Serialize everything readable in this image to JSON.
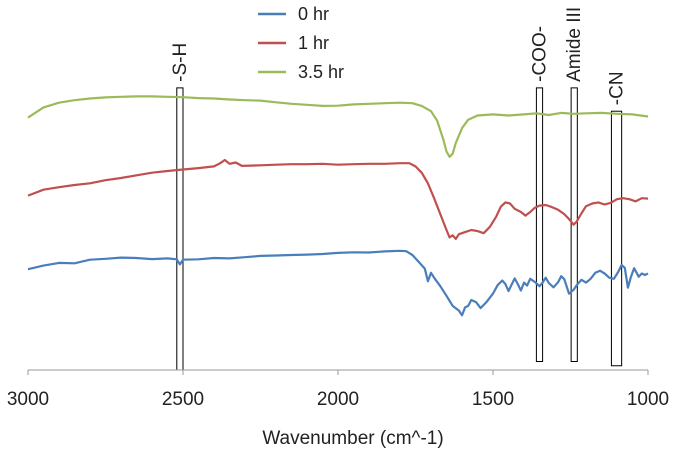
{
  "chart_data": {
    "type": "line",
    "title": "",
    "xlabel": "Wavenumber (cm^-1)",
    "ylabel": "",
    "xlim": [
      3000,
      1000
    ],
    "x_reversed": true,
    "x_ticks": [
      3000,
      2500,
      2000,
      1500,
      1000
    ],
    "y_ticks_shown": false,
    "grid": false,
    "legend_position": "top-center",
    "series": [
      {
        "name": "0 hr",
        "color": "#4a7ebb",
        "points": [
          [
            3000,
            -1.75
          ],
          [
            2950,
            -1.58
          ],
          [
            2900,
            -1.45
          ],
          [
            2850,
            -1.47
          ],
          [
            2800,
            -1.3
          ],
          [
            2750,
            -1.26
          ],
          [
            2700,
            -1.2
          ],
          [
            2650,
            -1.22
          ],
          [
            2600,
            -1.27
          ],
          [
            2550,
            -1.24
          ],
          [
            2520,
            -1.28
          ],
          [
            2510,
            -1.52
          ],
          [
            2500,
            -1.3
          ],
          [
            2450,
            -1.28
          ],
          [
            2400,
            -1.22
          ],
          [
            2350,
            -1.24
          ],
          [
            2300,
            -1.18
          ],
          [
            2250,
            -1.12
          ],
          [
            2200,
            -1.1
          ],
          [
            2150,
            -1.08
          ],
          [
            2100,
            -1.06
          ],
          [
            2050,
            -1.03
          ],
          [
            2000,
            -0.98
          ],
          [
            1950,
            -0.95
          ],
          [
            1900,
            -0.96
          ],
          [
            1850,
            -0.91
          ],
          [
            1800,
            -0.88
          ],
          [
            1780,
            -0.9
          ],
          [
            1760,
            -1.08
          ],
          [
            1740,
            -1.4
          ],
          [
            1720,
            -1.72
          ],
          [
            1710,
            -2.32
          ],
          [
            1700,
            -1.92
          ],
          [
            1690,
            -2.15
          ],
          [
            1670,
            -2.55
          ],
          [
            1650,
            -3.0
          ],
          [
            1630,
            -3.48
          ],
          [
            1610,
            -3.7
          ],
          [
            1600,
            -3.92
          ],
          [
            1590,
            -3.55
          ],
          [
            1580,
            -3.48
          ],
          [
            1570,
            -3.2
          ],
          [
            1555,
            -3.3
          ],
          [
            1540,
            -3.58
          ],
          [
            1520,
            -3.28
          ],
          [
            1500,
            -2.9
          ],
          [
            1485,
            -2.5
          ],
          [
            1470,
            -2.28
          ],
          [
            1460,
            -2.45
          ],
          [
            1450,
            -2.78
          ],
          [
            1440,
            -2.48
          ],
          [
            1430,
            -2.18
          ],
          [
            1420,
            -2.45
          ],
          [
            1410,
            -2.75
          ],
          [
            1400,
            -2.38
          ],
          [
            1390,
            -2.52
          ],
          [
            1380,
            -2.2
          ],
          [
            1365,
            -2.35
          ],
          [
            1350,
            -2.55
          ],
          [
            1340,
            -2.38
          ],
          [
            1330,
            -2.15
          ],
          [
            1320,
            -2.4
          ],
          [
            1305,
            -2.6
          ],
          [
            1290,
            -2.36
          ],
          [
            1280,
            -2.08
          ],
          [
            1270,
            -2.22
          ],
          [
            1255,
            -2.9
          ],
          [
            1240,
            -2.72
          ],
          [
            1230,
            -2.5
          ],
          [
            1215,
            -2.25
          ],
          [
            1200,
            -2.38
          ],
          [
            1185,
            -2.2
          ],
          [
            1170,
            -1.92
          ],
          [
            1155,
            -1.82
          ],
          [
            1140,
            -1.95
          ],
          [
            1125,
            -2.15
          ],
          [
            1110,
            -2.2
          ],
          [
            1095,
            -1.85
          ],
          [
            1085,
            -1.55
          ],
          [
            1075,
            -1.68
          ],
          [
            1065,
            -2.62
          ],
          [
            1055,
            -2.1
          ],
          [
            1045,
            -1.7
          ],
          [
            1030,
            -2.1
          ],
          [
            1020,
            -1.95
          ],
          [
            1010,
            -2.02
          ],
          [
            1000,
            -1.95
          ]
        ]
      },
      {
        "name": "1 hr",
        "color": "#c0504d",
        "points": [
          [
            3000,
            1.72
          ],
          [
            2950,
            2.0
          ],
          [
            2900,
            2.12
          ],
          [
            2850,
            2.22
          ],
          [
            2800,
            2.3
          ],
          [
            2750,
            2.45
          ],
          [
            2700,
            2.55
          ],
          [
            2650,
            2.68
          ],
          [
            2600,
            2.8
          ],
          [
            2550,
            2.88
          ],
          [
            2500,
            2.95
          ],
          [
            2450,
            3.02
          ],
          [
            2400,
            3.1
          ],
          [
            2380,
            3.25
          ],
          [
            2365,
            3.4
          ],
          [
            2350,
            3.22
          ],
          [
            2330,
            3.28
          ],
          [
            2310,
            3.12
          ],
          [
            2250,
            3.15
          ],
          [
            2200,
            3.18
          ],
          [
            2150,
            3.2
          ],
          [
            2100,
            3.2
          ],
          [
            2050,
            3.22
          ],
          [
            2000,
            3.18
          ],
          [
            1950,
            3.2
          ],
          [
            1900,
            3.22
          ],
          [
            1850,
            3.22
          ],
          [
            1800,
            3.25
          ],
          [
            1770,
            3.25
          ],
          [
            1750,
            3.1
          ],
          [
            1730,
            2.8
          ],
          [
            1710,
            2.3
          ],
          [
            1690,
            1.6
          ],
          [
            1670,
            0.85
          ],
          [
            1650,
            0.1
          ],
          [
            1640,
            -0.25
          ],
          [
            1630,
            -0.15
          ],
          [
            1620,
            -0.32
          ],
          [
            1610,
            -0.1
          ],
          [
            1590,
            0.0
          ],
          [
            1570,
            0.1
          ],
          [
            1550,
            0.05
          ],
          [
            1530,
            -0.05
          ],
          [
            1510,
            0.25
          ],
          [
            1490,
            0.72
          ],
          [
            1475,
            1.2
          ],
          [
            1460,
            1.4
          ],
          [
            1445,
            1.35
          ],
          [
            1430,
            1.1
          ],
          [
            1410,
            0.95
          ],
          [
            1395,
            0.78
          ],
          [
            1380,
            0.95
          ],
          [
            1365,
            1.15
          ],
          [
            1350,
            1.25
          ],
          [
            1330,
            1.28
          ],
          [
            1310,
            1.18
          ],
          [
            1290,
            1.05
          ],
          [
            1270,
            0.85
          ],
          [
            1255,
            0.62
          ],
          [
            1240,
            0.35
          ],
          [
            1230,
            0.5
          ],
          [
            1215,
            0.88
          ],
          [
            1200,
            1.22
          ],
          [
            1180,
            1.35
          ],
          [
            1160,
            1.4
          ],
          [
            1140,
            1.3
          ],
          [
            1120,
            1.38
          ],
          [
            1100,
            1.55
          ],
          [
            1080,
            1.6
          ],
          [
            1060,
            1.55
          ],
          [
            1040,
            1.45
          ],
          [
            1020,
            1.6
          ],
          [
            1000,
            1.58
          ]
        ]
      },
      {
        "name": "3.5 hr",
        "color": "#9bbb59",
        "points": [
          [
            3000,
            5.4
          ],
          [
            2950,
            5.88
          ],
          [
            2900,
            6.1
          ],
          [
            2850,
            6.22
          ],
          [
            2800,
            6.3
          ],
          [
            2750,
            6.35
          ],
          [
            2700,
            6.38
          ],
          [
            2650,
            6.4
          ],
          [
            2600,
            6.4
          ],
          [
            2550,
            6.38
          ],
          [
            2500,
            6.36
          ],
          [
            2450,
            6.32
          ],
          [
            2400,
            6.3
          ],
          [
            2350,
            6.25
          ],
          [
            2300,
            6.22
          ],
          [
            2250,
            6.2
          ],
          [
            2200,
            6.12
          ],
          [
            2150,
            6.05
          ],
          [
            2100,
            6.0
          ],
          [
            2050,
            5.95
          ],
          [
            2000,
            5.96
          ],
          [
            1950,
            6.02
          ],
          [
            1900,
            6.05
          ],
          [
            1850,
            6.08
          ],
          [
            1800,
            6.1
          ],
          [
            1760,
            6.08
          ],
          [
            1730,
            5.95
          ],
          [
            1700,
            5.7
          ],
          [
            1680,
            5.25
          ],
          [
            1660,
            4.35
          ],
          [
            1650,
            3.8
          ],
          [
            1640,
            3.55
          ],
          [
            1630,
            3.7
          ],
          [
            1620,
            4.2
          ],
          [
            1600,
            4.9
          ],
          [
            1580,
            5.3
          ],
          [
            1550,
            5.5
          ],
          [
            1500,
            5.55
          ],
          [
            1450,
            5.5
          ],
          [
            1400,
            5.55
          ],
          [
            1360,
            5.6
          ],
          [
            1320,
            5.52
          ],
          [
            1280,
            5.62
          ],
          [
            1240,
            5.58
          ],
          [
            1200,
            5.6
          ],
          [
            1150,
            5.62
          ],
          [
            1100,
            5.58
          ],
          [
            1050,
            5.55
          ],
          [
            1000,
            5.45
          ]
        ]
      }
    ],
    "ylim": [
      -6.5,
      10.0
    ],
    "band_markers": [
      {
        "label": "-S-H",
        "x_from": 2520,
        "x_to": 2500,
        "y_from": -6.5,
        "y_to": 6.8
      },
      {
        "label": "-COO-",
        "x_from": 1360,
        "x_to": 1340,
        "y_from": -6.1,
        "y_to": 6.8
      },
      {
        "label": "Amide III",
        "x_from": 1248,
        "x_to": 1228,
        "y_from": -6.1,
        "y_to": 6.8
      },
      {
        "label": "-CN",
        "x_from": 1118,
        "x_to": 1085,
        "y_from": -6.3,
        "y_to": 5.7
      }
    ]
  }
}
